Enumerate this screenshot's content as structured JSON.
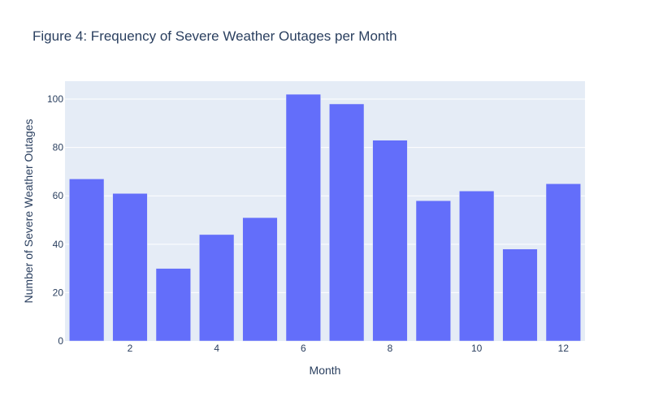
{
  "chart_data": {
    "type": "bar",
    "title": "Figure 4: Frequency of Severe Weather Outages per Month",
    "xlabel": "Month",
    "ylabel": "Number of Severe Weather Outages",
    "x": [
      1,
      2,
      3,
      4,
      5,
      6,
      7,
      8,
      9,
      10,
      11,
      12
    ],
    "values": [
      67,
      61,
      30,
      44,
      51,
      102,
      98,
      83,
      58,
      62,
      38,
      65
    ],
    "xlim": [
      0.5,
      12.5
    ],
    "ylim": [
      0,
      107.4
    ],
    "x_ticks": [
      2,
      4,
      6,
      8,
      10,
      12
    ],
    "y_ticks": [
      0,
      20,
      40,
      60,
      80,
      100
    ],
    "grid": true,
    "legend": false,
    "colors": {
      "bar": "#636efa",
      "plot_bg": "#e5ecf6",
      "grid": "#ffffff",
      "text": "#2a3f5f"
    }
  }
}
